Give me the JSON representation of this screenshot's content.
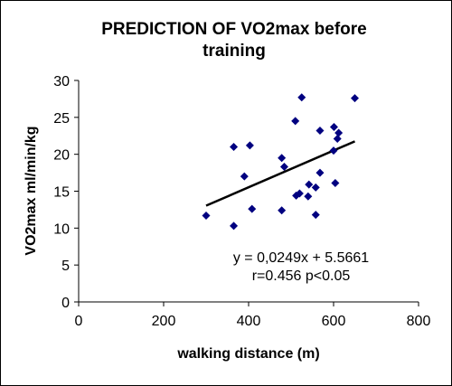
{
  "chart_data": {
    "type": "scatter",
    "title_lines": [
      "PREDICTION OF VO2max before",
      "training"
    ],
    "xlabel": "walking distance (m)",
    "ylabel": "VO2max  ml/min/kg",
    "xlim": [
      0,
      800
    ],
    "ylim": [
      0,
      30
    ],
    "x_ticks": [
      0,
      200,
      400,
      600,
      800
    ],
    "y_ticks": [
      0,
      5,
      10,
      15,
      20,
      25,
      30
    ],
    "grid": false,
    "legend": "none",
    "marker_color": "#000080",
    "line_color": "#000000",
    "points": [
      {
        "x": 300,
        "y": 11.7
      },
      {
        "x": 365,
        "y": 10.3
      },
      {
        "x": 365,
        "y": 21.0
      },
      {
        "x": 390,
        "y": 17.0
      },
      {
        "x": 403,
        "y": 21.2
      },
      {
        "x": 408,
        "y": 12.6
      },
      {
        "x": 478,
        "y": 12.4
      },
      {
        "x": 478,
        "y": 19.5
      },
      {
        "x": 484,
        "y": 18.3
      },
      {
        "x": 510,
        "y": 24.5
      },
      {
        "x": 512,
        "y": 14.4
      },
      {
        "x": 520,
        "y": 14.7
      },
      {
        "x": 525,
        "y": 27.7
      },
      {
        "x": 540,
        "y": 14.3
      },
      {
        "x": 542,
        "y": 15.9
      },
      {
        "x": 558,
        "y": 11.8
      },
      {
        "x": 558,
        "y": 15.5
      },
      {
        "x": 568,
        "y": 17.5
      },
      {
        "x": 568,
        "y": 23.2
      },
      {
        "x": 600,
        "y": 20.5
      },
      {
        "x": 601,
        "y": 23.7
      },
      {
        "x": 604,
        "y": 16.1
      },
      {
        "x": 609,
        "y": 22.1
      },
      {
        "x": 612,
        "y": 22.9
      },
      {
        "x": 650,
        "y": 27.6
      }
    ],
    "trendline": {
      "slope": 0.0249,
      "intercept": 5.5661,
      "x_start": 300,
      "x_end": 650
    },
    "annotations": [
      "y = 0,0249x + 5.5661",
      "r=0.456 p<0.05"
    ]
  }
}
